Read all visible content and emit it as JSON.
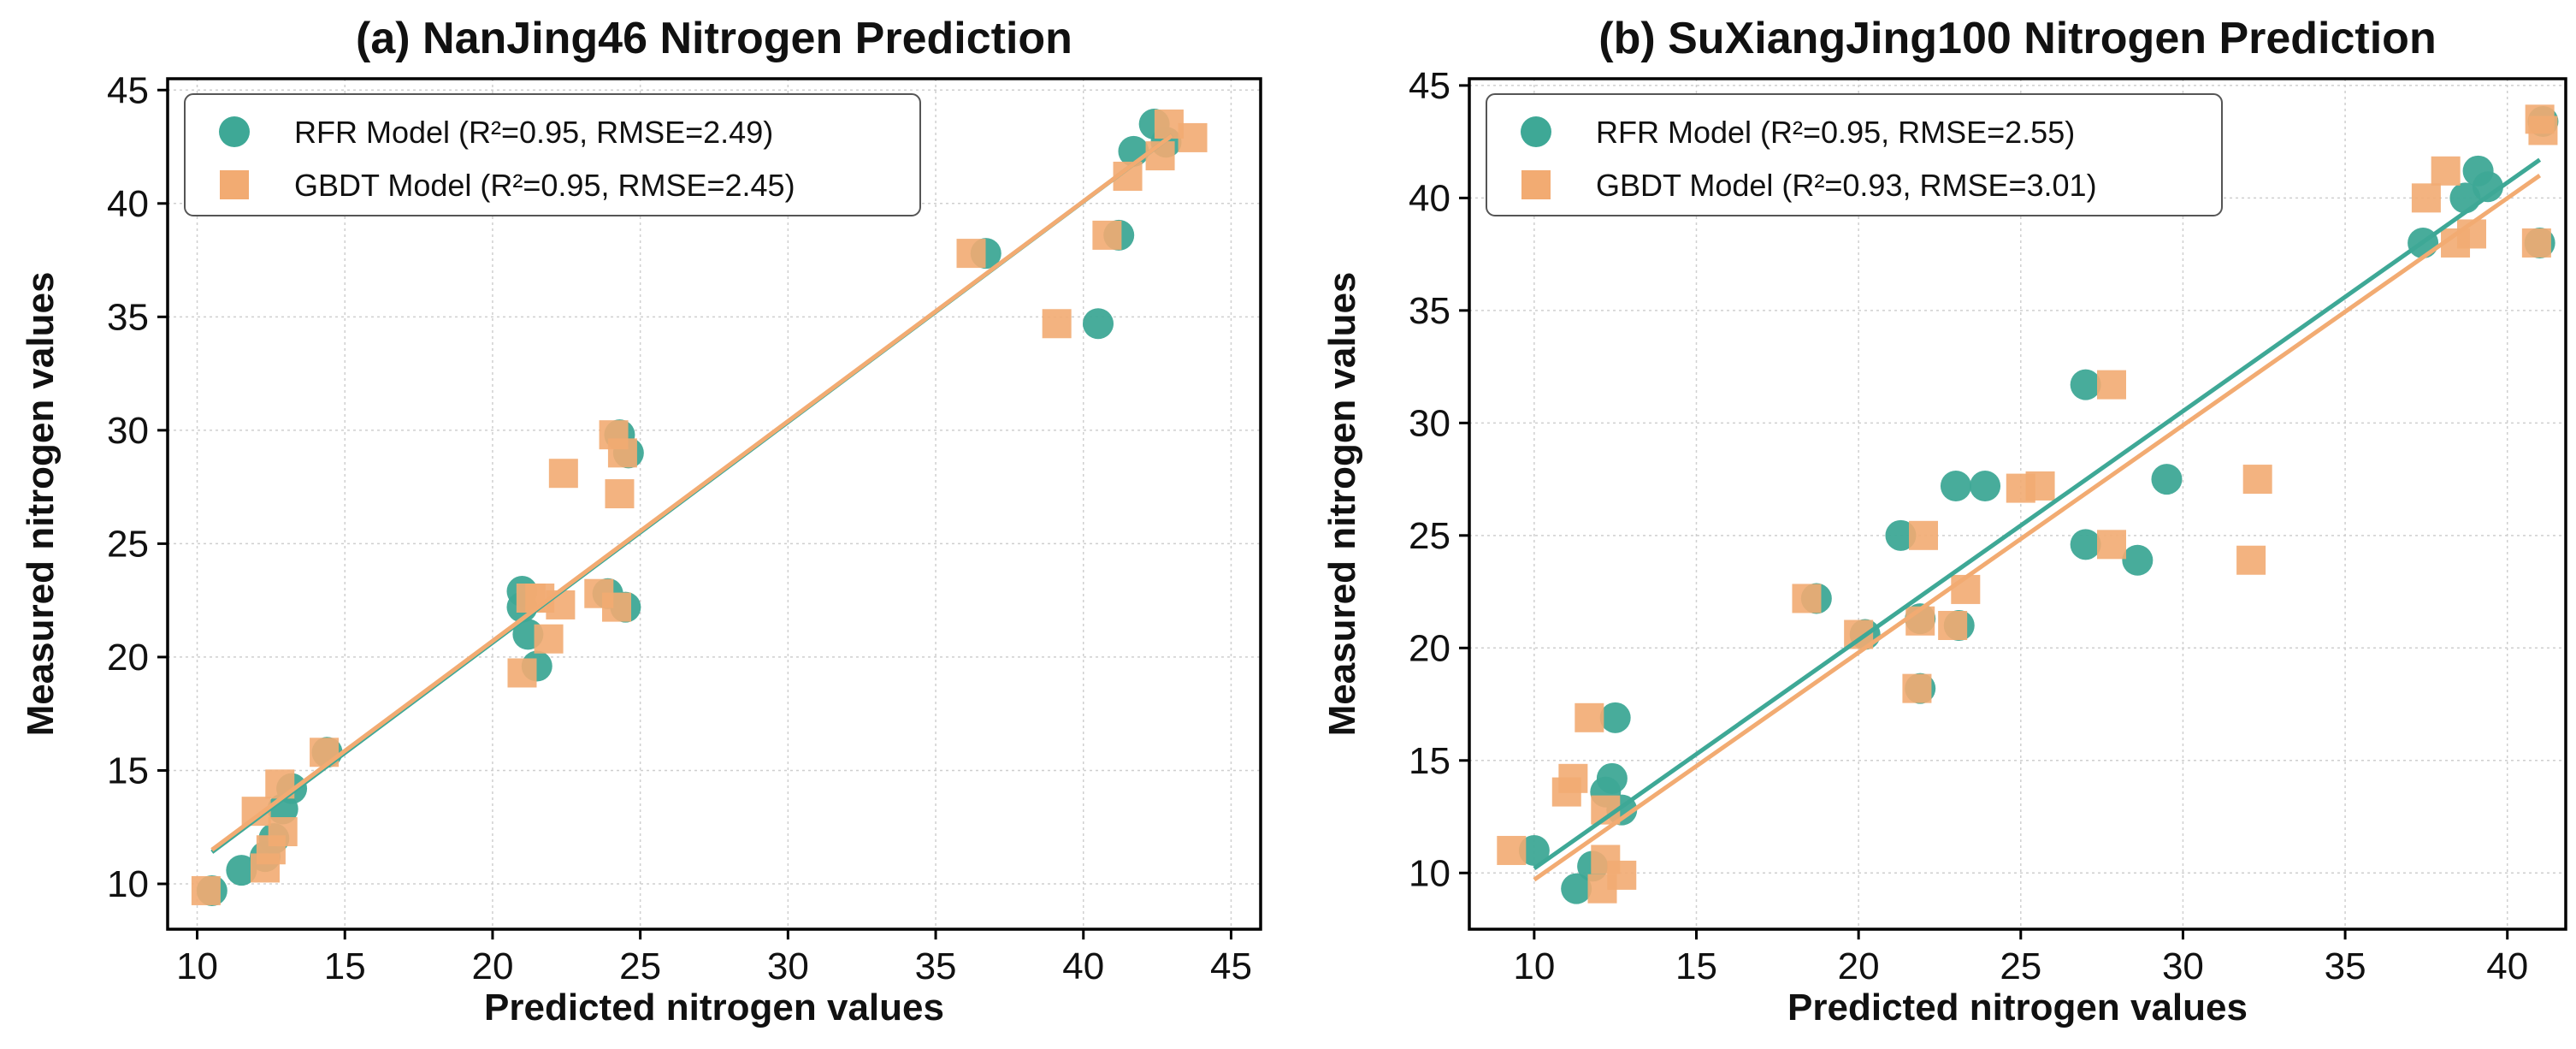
{
  "chart_data": [
    {
      "type": "scatter",
      "title": "(a) NanJing46 Nitrogen Prediction",
      "xlabel": "Predicted nitrogen values",
      "ylabel": "Measured nitrogen values",
      "xlim": [
        9,
        46
      ],
      "ylim": [
        8,
        45.5
      ],
      "xticks": [
        10,
        15,
        20,
        25,
        30,
        35,
        40,
        45
      ],
      "yticks": [
        10,
        15,
        20,
        25,
        30,
        35,
        40,
        45
      ],
      "grid": true,
      "legend_position": "top-left",
      "series": [
        {
          "name": "RFR  Model (R²=0.95, RMSE=2.49)",
          "marker": "circle",
          "color": "#3ea896",
          "points": [
            [
              10.5,
              9.7
            ],
            [
              11.5,
              10.6
            ],
            [
              12.3,
              11.2
            ],
            [
              12.6,
              12.0
            ],
            [
              12.9,
              13.3
            ],
            [
              13.2,
              14.2
            ],
            [
              14.4,
              15.8
            ],
            [
              21.0,
              22.2
            ],
            [
              21.0,
              22.9
            ],
            [
              21.2,
              21.0
            ],
            [
              21.5,
              19.6
            ],
            [
              23.9,
              22.8
            ],
            [
              24.3,
              29.8
            ],
            [
              24.5,
              22.2
            ],
            [
              24.6,
              29.0
            ],
            [
              36.7,
              37.8
            ],
            [
              40.5,
              34.7
            ],
            [
              41.2,
              38.6
            ],
            [
              41.7,
              42.3
            ],
            [
              42.4,
              43.5
            ],
            [
              42.8,
              42.7
            ]
          ],
          "fit": [
            [
              10.5,
              11.4
            ],
            [
              43.0,
              43.0
            ]
          ]
        },
        {
          "name": "GBDT Model (R²=0.95, RMSE=2.45)",
          "marker": "square",
          "color": "#f2ab72",
          "points": [
            [
              10.3,
              9.7
            ],
            [
              12.0,
              13.2
            ],
            [
              12.3,
              10.7
            ],
            [
              12.5,
              11.5
            ],
            [
              12.8,
              14.4
            ],
            [
              12.9,
              12.3
            ],
            [
              14.3,
              15.8
            ],
            [
              21.0,
              19.3
            ],
            [
              21.3,
              22.6
            ],
            [
              21.6,
              22.6
            ],
            [
              21.9,
              20.8
            ],
            [
              22.3,
              22.3
            ],
            [
              22.4,
              28.1
            ],
            [
              23.6,
              22.8
            ],
            [
              24.1,
              29.8
            ],
            [
              24.2,
              22.2
            ],
            [
              24.3,
              27.2
            ],
            [
              24.4,
              29.0
            ],
            [
              36.2,
              37.8
            ],
            [
              39.1,
              34.7
            ],
            [
              40.8,
              38.6
            ],
            [
              41.5,
              41.2
            ],
            [
              42.6,
              42.1
            ],
            [
              42.9,
              43.5
            ],
            [
              43.7,
              42.9
            ]
          ],
          "fit": [
            [
              10.5,
              11.5
            ],
            [
              43.0,
              43.0
            ]
          ]
        }
      ]
    },
    {
      "type": "scatter",
      "title": "(b) SuXiangJing100 Nitrogen Prediction",
      "xlabel": "Predicted nitrogen values",
      "ylabel": "Measured nitrogen values",
      "xlim": [
        8,
        41.8
      ],
      "ylim": [
        7.5,
        45.3
      ],
      "xticks": [
        10,
        15,
        20,
        25,
        30,
        35,
        40
      ],
      "yticks": [
        10,
        15,
        20,
        25,
        30,
        35,
        40,
        45
      ],
      "grid": true,
      "legend_position": "top-left",
      "series": [
        {
          "name": "RFR  Model (R²=0.95, RMSE=2.55)",
          "marker": "circle",
          "color": "#3ea896",
          "points": [
            [
              10.0,
              11.0
            ],
            [
              11.3,
              9.3
            ],
            [
              11.8,
              10.3
            ],
            [
              12.2,
              13.6
            ],
            [
              12.4,
              14.2
            ],
            [
              12.5,
              16.9
            ],
            [
              12.7,
              12.8
            ],
            [
              18.7,
              22.2
            ],
            [
              20.2,
              20.6
            ],
            [
              21.3,
              25.0
            ],
            [
              21.9,
              18.2
            ],
            [
              21.9,
              21.3
            ],
            [
              23.0,
              27.2
            ],
            [
              23.1,
              21.0
            ],
            [
              23.9,
              27.2
            ],
            [
              27.0,
              31.7
            ],
            [
              27.0,
              24.6
            ],
            [
              28.6,
              23.9
            ],
            [
              29.5,
              27.5
            ],
            [
              37.4,
              38.0
            ],
            [
              38.7,
              40.0
            ],
            [
              39.1,
              41.2
            ],
            [
              39.4,
              40.5
            ],
            [
              41.0,
              38.0
            ],
            [
              41.1,
              43.4
            ]
          ],
          "fit": [
            [
              10.0,
              10.2
            ],
            [
              41.0,
              41.7
            ]
          ]
        },
        {
          "name": "GBDT Model (R²=0.93, RMSE=3.01)",
          "marker": "square",
          "color": "#f2ab72",
          "points": [
            [
              9.3,
              11.0
            ],
            [
              11.0,
              13.6
            ],
            [
              11.2,
              14.2
            ],
            [
              11.7,
              16.9
            ],
            [
              12.1,
              9.3
            ],
            [
              12.2,
              10.6
            ],
            [
              12.2,
              12.8
            ],
            [
              12.7,
              9.9
            ],
            [
              18.4,
              22.2
            ],
            [
              20.0,
              20.6
            ],
            [
              21.8,
              18.2
            ],
            [
              21.9,
              21.2
            ],
            [
              22.0,
              25.0
            ],
            [
              22.9,
              21.0
            ],
            [
              23.3,
              22.6
            ],
            [
              25.0,
              27.1
            ],
            [
              25.6,
              27.2
            ],
            [
              27.8,
              31.7
            ],
            [
              27.8,
              24.6
            ],
            [
              32.1,
              23.9
            ],
            [
              32.3,
              27.5
            ],
            [
              37.5,
              40.0
            ],
            [
              38.1,
              41.2
            ],
            [
              38.4,
              38.0
            ],
            [
              38.9,
              38.4
            ],
            [
              40.9,
              38.0
            ],
            [
              41.0,
              43.5
            ],
            [
              41.1,
              43.0
            ]
          ],
          "fit": [
            [
              10.0,
              9.7
            ],
            [
              41.0,
              41.0
            ]
          ]
        }
      ]
    }
  ]
}
